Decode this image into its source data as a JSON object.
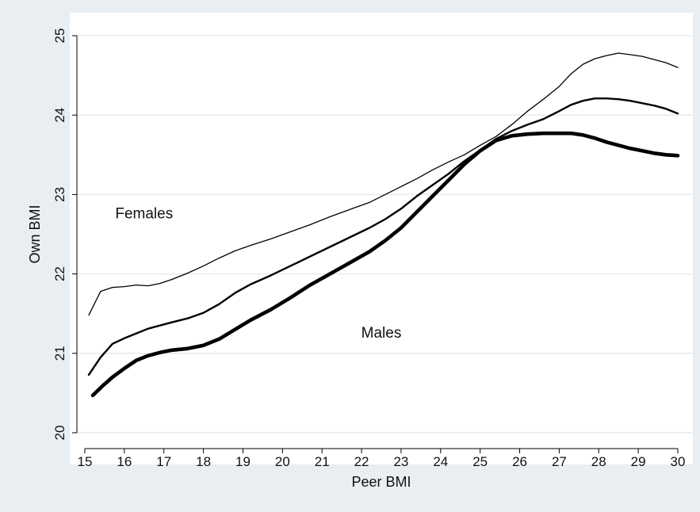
{
  "chart_data": {
    "type": "line",
    "title": "",
    "xlabel": "Peer BMI",
    "ylabel": "Own BMI",
    "xlim": [
      15,
      30
    ],
    "ylim": [
      20,
      25
    ],
    "x_ticks": [
      15,
      16,
      17,
      18,
      19,
      20,
      21,
      22,
      23,
      24,
      25,
      26,
      27,
      28,
      29,
      30
    ],
    "y_ticks": [
      20,
      21,
      22,
      23,
      24,
      25
    ],
    "grid": "horizontal",
    "legend": "none",
    "annotations": [
      {
        "text": "Females",
        "x": 16.5,
        "y": 22.7
      },
      {
        "text": "Males",
        "x": 22.5,
        "y": 21.2
      }
    ],
    "series": [
      {
        "style": "thin",
        "x": [
          15.1,
          15.4,
          15.7,
          16.0,
          16.3,
          16.6,
          16.9,
          17.2,
          17.6,
          18.0,
          18.4,
          18.8,
          19.2,
          19.7,
          20.2,
          20.7,
          21.2,
          21.7,
          22.2,
          22.6,
          23.0,
          23.4,
          23.8,
          24.2,
          24.6,
          25.0,
          25.4,
          25.8,
          26.2,
          26.6,
          27.0,
          27.3,
          27.6,
          27.9,
          28.2,
          28.5,
          28.8,
          29.1,
          29.4,
          29.7,
          30.0
        ],
        "values": [
          21.48,
          21.78,
          21.83,
          21.84,
          21.86,
          21.85,
          21.88,
          21.93,
          22.01,
          22.1,
          22.2,
          22.29,
          22.36,
          22.44,
          22.53,
          22.62,
          22.72,
          22.81,
          22.9,
          23.0,
          23.1,
          23.2,
          23.31,
          23.41,
          23.5,
          23.62,
          23.73,
          23.88,
          24.05,
          24.2,
          24.36,
          24.52,
          24.64,
          24.71,
          24.75,
          24.78,
          24.76,
          24.74,
          24.7,
          24.66,
          24.6
        ]
      },
      {
        "style": "medium",
        "x": [
          15.1,
          15.4,
          15.7,
          16.0,
          16.3,
          16.6,
          16.9,
          17.2,
          17.6,
          18.0,
          18.4,
          18.8,
          19.2,
          19.7,
          20.2,
          20.7,
          21.2,
          21.7,
          22.2,
          22.6,
          23.0,
          23.4,
          23.8,
          24.2,
          24.6,
          25.0,
          25.4,
          25.8,
          26.2,
          26.6,
          27.0,
          27.3,
          27.6,
          27.9,
          28.2,
          28.5,
          28.8,
          29.1,
          29.4,
          29.7,
          30.0
        ],
        "values": [
          20.73,
          20.95,
          21.12,
          21.19,
          21.25,
          21.31,
          21.35,
          21.39,
          21.44,
          21.51,
          21.62,
          21.76,
          21.87,
          21.98,
          22.1,
          22.22,
          22.34,
          22.46,
          22.58,
          22.69,
          22.82,
          22.98,
          23.12,
          23.26,
          23.42,
          23.56,
          23.7,
          23.8,
          23.88,
          23.95,
          24.05,
          24.13,
          24.18,
          24.21,
          24.21,
          24.2,
          24.18,
          24.15,
          24.12,
          24.08,
          24.02
        ]
      },
      {
        "style": "thick",
        "x": [
          15.2,
          15.45,
          15.7,
          16.0,
          16.3,
          16.6,
          16.9,
          17.2,
          17.6,
          18.0,
          18.4,
          18.8,
          19.2,
          19.7,
          20.2,
          20.7,
          21.2,
          21.7,
          22.2,
          22.6,
          23.0,
          23.4,
          23.8,
          24.2,
          24.6,
          25.0,
          25.4,
          25.8,
          26.2,
          26.6,
          27.0,
          27.3,
          27.6,
          27.9,
          28.2,
          28.5,
          28.8,
          29.1,
          29.4,
          29.7,
          30.0
        ],
        "values": [
          20.47,
          20.59,
          20.7,
          20.81,
          20.91,
          20.97,
          21.01,
          21.04,
          21.06,
          21.1,
          21.18,
          21.3,
          21.42,
          21.55,
          21.7,
          21.86,
          22.0,
          22.14,
          22.28,
          22.42,
          22.58,
          22.78,
          22.98,
          23.18,
          23.38,
          23.55,
          23.68,
          23.74,
          23.76,
          23.77,
          23.77,
          23.77,
          23.75,
          23.71,
          23.66,
          23.62,
          23.58,
          23.55,
          23.52,
          23.5,
          23.49
        ]
      }
    ]
  }
}
